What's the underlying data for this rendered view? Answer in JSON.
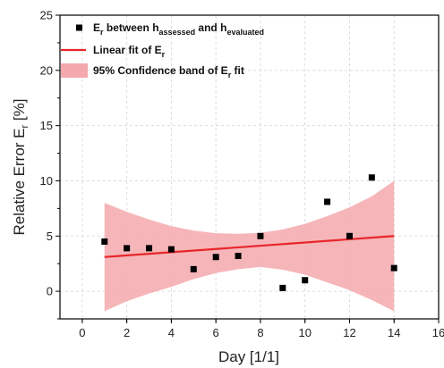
{
  "chart_data": {
    "type": "scatter",
    "xlabel": "Day [1/1]",
    "ylabel": "Relative Error E",
    "ylabel_sub": "r",
    "ylabel_unit": " [%]",
    "xlim": [
      -1,
      16
    ],
    "ylim": [
      -2.5,
      25
    ],
    "x_ticks": [
      0,
      2,
      4,
      6,
      8,
      10,
      12,
      14,
      16
    ],
    "y_ticks": [
      0,
      5,
      10,
      15,
      20,
      25
    ],
    "grid": true,
    "legend_position": "top-left",
    "series": [
      {
        "kind": "points",
        "legend": {
          "parts": [
            {
              "t": "E",
              "s": "n"
            },
            {
              "t": "r",
              "s": "sub"
            },
            {
              "t": " between h",
              "s": "n"
            },
            {
              "t": "assessed",
              "s": "sub"
            },
            {
              "t": " and h",
              "s": "n"
            },
            {
              "t": "evaluated",
              "s": "sub"
            }
          ]
        },
        "color": "#000000",
        "x": [
          1,
          2,
          3,
          4,
          5,
          6,
          7,
          8,
          9,
          10,
          11,
          12,
          13,
          14
        ],
        "y": [
          4.5,
          3.9,
          3.9,
          3.8,
          2.0,
          3.1,
          3.2,
          5.0,
          0.3,
          1.0,
          8.1,
          5.0,
          10.3,
          2.1
        ]
      },
      {
        "kind": "fit_line",
        "legend": {
          "parts": [
            {
              "t": "Linear fit of E",
              "s": "n"
            },
            {
              "t": "r",
              "s": "sub"
            }
          ]
        },
        "color": "#e8252b",
        "x": [
          1,
          14
        ],
        "y": [
          3.1,
          5.0
        ]
      },
      {
        "kind": "band",
        "legend": {
          "parts": [
            {
              "t": "95% Confidence band of E",
              "s": "n"
            },
            {
              "t": "r",
              "s": "sub"
            },
            {
              "t": " fit",
              "s": "n"
            }
          ]
        },
        "color": "#f4a9ad",
        "x": [
          1,
          2,
          3,
          4,
          5,
          6,
          7,
          8,
          9,
          10,
          11,
          12,
          13,
          14
        ],
        "upper": [
          8.0,
          7.2,
          6.5,
          5.9,
          5.5,
          5.25,
          5.2,
          5.3,
          5.6,
          6.1,
          6.8,
          7.6,
          8.6,
          10.0
        ],
        "lower": [
          -1.8,
          -0.9,
          -0.2,
          0.4,
          1.1,
          1.65,
          2.0,
          2.2,
          1.95,
          1.5,
          0.8,
          0.1,
          -0.8,
          -1.8
        ]
      }
    ]
  }
}
